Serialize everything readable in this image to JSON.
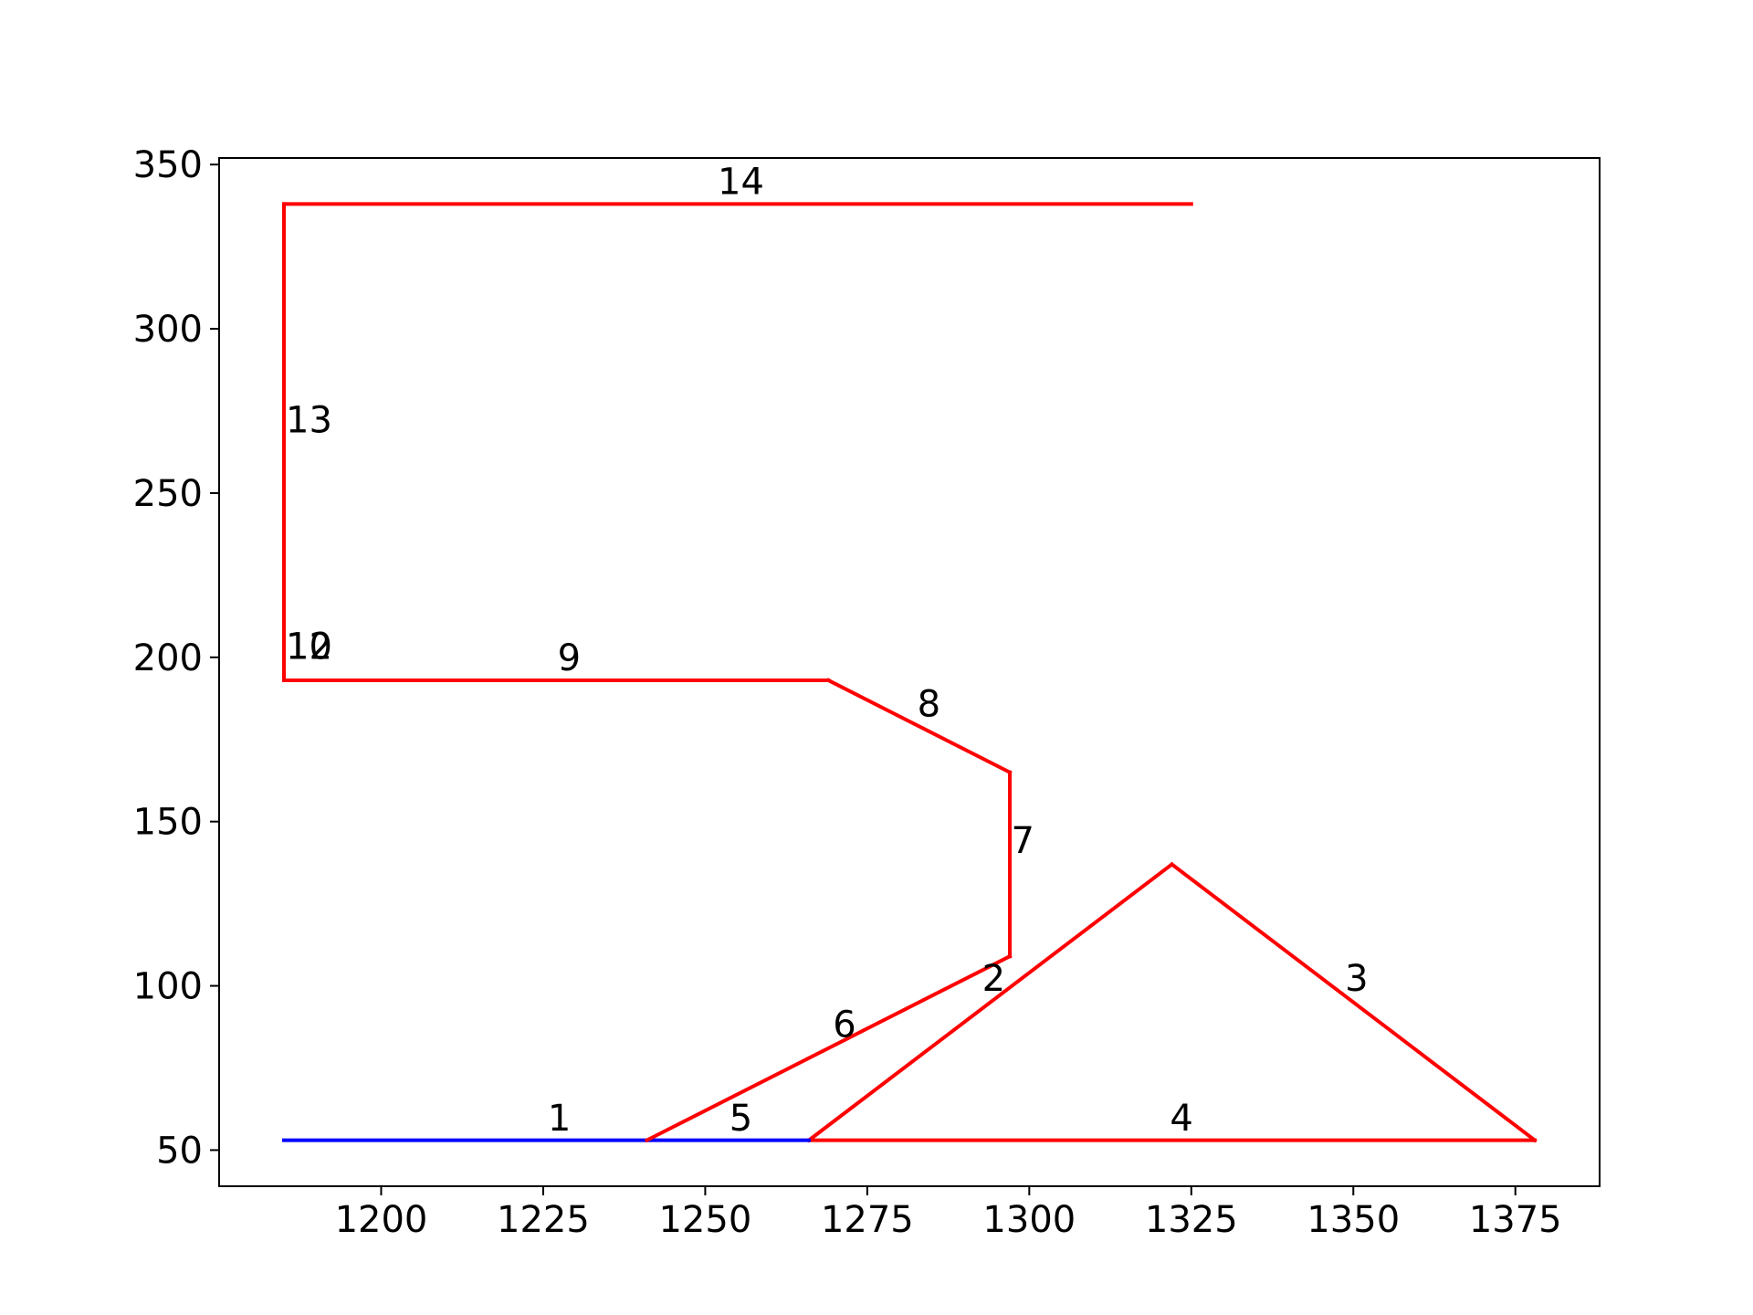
{
  "chart_data": {
    "type": "line",
    "title": "",
    "xlabel": "",
    "ylabel": "",
    "xlim": [
      1175,
      1388
    ],
    "ylim": [
      39,
      352
    ],
    "xticks": [
      1200,
      1225,
      1250,
      1275,
      1300,
      1325,
      1350,
      1375
    ],
    "yticks": [
      50,
      100,
      150,
      200,
      250,
      300,
      350
    ],
    "grid": false,
    "legend": "none",
    "colors": {
      "red": "#ff0000",
      "blue": "#0000ff"
    },
    "segments": [
      {
        "label": "1",
        "color": "blue",
        "points": [
          [
            1185,
            53
          ],
          [
            1241,
            53
          ]
        ]
      },
      {
        "label": "2",
        "color": "red",
        "points": [
          [
            1266,
            53
          ],
          [
            1322,
            137
          ]
        ]
      },
      {
        "label": "3",
        "color": "red",
        "points": [
          [
            1322,
            137
          ],
          [
            1378,
            53
          ]
        ]
      },
      {
        "label": "4",
        "color": "red",
        "points": [
          [
            1378,
            53
          ],
          [
            1266,
            53
          ]
        ]
      },
      {
        "label": "5",
        "color": "blue",
        "points": [
          [
            1241,
            53
          ],
          [
            1266,
            53
          ]
        ]
      },
      {
        "label": "6",
        "color": "red",
        "points": [
          [
            1241,
            53
          ],
          [
            1297,
            109
          ]
        ]
      },
      {
        "label": "7",
        "color": "red",
        "points": [
          [
            1297,
            109
          ],
          [
            1297,
            165
          ]
        ]
      },
      {
        "label": "8",
        "color": "red",
        "points": [
          [
            1297,
            165
          ],
          [
            1269,
            193
          ]
        ]
      },
      {
        "label": "9",
        "color": "red",
        "points": [
          [
            1269,
            193
          ],
          [
            1185,
            193
          ]
        ]
      },
      {
        "label": "10",
        "color": "blue",
        "points": [
          [
            1185,
            193
          ],
          [
            1185,
            198
          ]
        ]
      },
      {
        "label": "12",
        "color": "red",
        "points": [
          [
            1185,
            198
          ],
          [
            1185,
            193
          ]
        ]
      },
      {
        "label": "13",
        "color": "red",
        "points": [
          [
            1185,
            193
          ],
          [
            1185,
            338
          ]
        ]
      },
      {
        "label": "14",
        "color": "red",
        "points": [
          [
            1185,
            338
          ],
          [
            1325,
            338
          ]
        ]
      }
    ],
    "labels": [
      {
        "text": "1",
        "x": 1227.5,
        "y": 56
      },
      {
        "text": "2",
        "x": 1294.5,
        "y": 98.5
      },
      {
        "text": "3",
        "x": 1350.5,
        "y": 98.5
      },
      {
        "text": "4",
        "x": 1323.5,
        "y": 56
      },
      {
        "text": "5",
        "x": 1255.5,
        "y": 56
      },
      {
        "text": "6",
        "x": 1271.5,
        "y": 84.5
      },
      {
        "text": "7",
        "x": 1299,
        "y": 140.5
      },
      {
        "text": "8",
        "x": 1284.5,
        "y": 182
      },
      {
        "text": "9",
        "x": 1229,
        "y": 196
      },
      {
        "text": "10",
        "x": 1185,
        "y": 199.5
      },
      {
        "text": "12",
        "x": 1185,
        "y": 199.5
      },
      {
        "text": "13",
        "x": 1185,
        "y": 268.5
      },
      {
        "text": "14",
        "x": 1255.5,
        "y": 341
      }
    ]
  }
}
